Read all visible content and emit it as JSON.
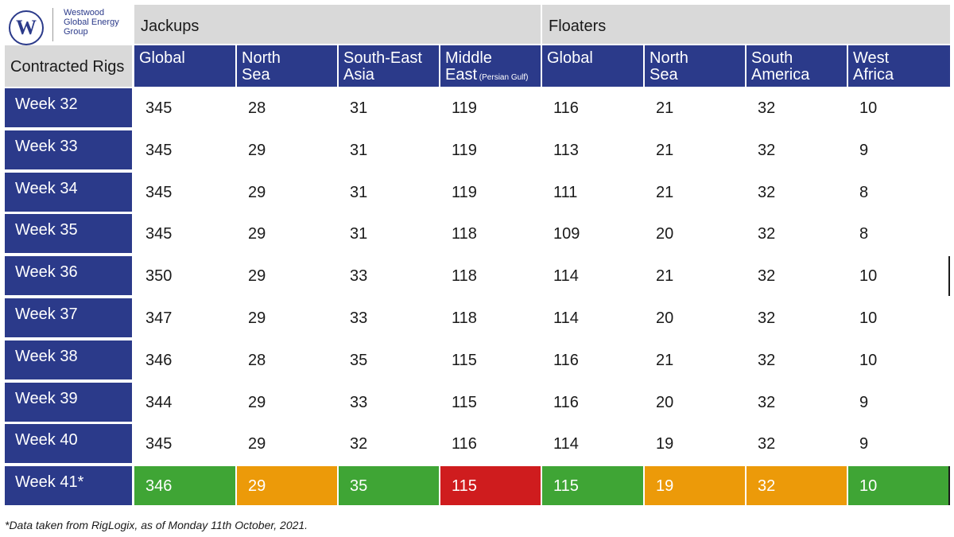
{
  "logo": {
    "mark": "W",
    "line1": "Westwood",
    "line2": "Global Energy",
    "line3": "Group"
  },
  "chart_data": {
    "type": "table",
    "row_header": "Contracted Rigs",
    "groups": [
      {
        "label": "Jackups",
        "columns": [
          "global",
          "north_sea",
          "se_asia",
          "middle_east"
        ]
      },
      {
        "label": "Floaters",
        "columns": [
          "global",
          "north_sea",
          "south_america",
          "west_africa"
        ]
      }
    ],
    "columns": [
      {
        "key": "jk_global",
        "line1": "Global",
        "line2": "",
        "note": ""
      },
      {
        "key": "jk_north_sea",
        "line1": "North",
        "line2": "Sea",
        "note": ""
      },
      {
        "key": "jk_se_asia",
        "line1": "South-East",
        "line2": "Asia",
        "note": ""
      },
      {
        "key": "jk_middle_east",
        "line1": "Middle",
        "line2": "East",
        "note": "(Persian Gulf)"
      },
      {
        "key": "fl_global",
        "line1": "Global",
        "line2": "",
        "note": ""
      },
      {
        "key": "fl_north_sea",
        "line1": "North",
        "line2": "Sea",
        "note": ""
      },
      {
        "key": "fl_south_america",
        "line1": "South",
        "line2": "America",
        "note": ""
      },
      {
        "key": "fl_west_africa",
        "line1": "West",
        "line2": "Africa",
        "note": ""
      }
    ],
    "rows": [
      {
        "label": "Week 32",
        "values": [
          345,
          28,
          31,
          119,
          116,
          21,
          32,
          10
        ]
      },
      {
        "label": "Week 33",
        "values": [
          345,
          29,
          31,
          119,
          113,
          21,
          32,
          9
        ]
      },
      {
        "label": "Week 34",
        "values": [
          345,
          29,
          31,
          119,
          111,
          21,
          32,
          8
        ]
      },
      {
        "label": "Week 35",
        "values": [
          345,
          29,
          31,
          118,
          109,
          20,
          32,
          8
        ]
      },
      {
        "label": "Week 36",
        "values": [
          350,
          29,
          33,
          118,
          114,
          21,
          32,
          10
        ]
      },
      {
        "label": "Week 37",
        "values": [
          347,
          29,
          33,
          118,
          114,
          20,
          32,
          10
        ]
      },
      {
        "label": "Week 38",
        "values": [
          346,
          28,
          35,
          115,
          116,
          21,
          32,
          10
        ]
      },
      {
        "label": "Week 39",
        "values": [
          344,
          29,
          33,
          115,
          116,
          20,
          32,
          9
        ]
      },
      {
        "label": "Week 40",
        "values": [
          345,
          29,
          32,
          116,
          114,
          19,
          32,
          9
        ]
      },
      {
        "label": "Week 41*",
        "values": [
          346,
          29,
          35,
          115,
          115,
          19,
          32,
          10
        ]
      }
    ],
    "highlight_row": 9,
    "highlight_colors": [
      "green",
      "orange",
      "green",
      "red",
      "green",
      "orange",
      "orange",
      "green"
    ],
    "colors": {
      "header_blue": "#2b3a8a",
      "header_gray": "#d9d9d9",
      "green": "#3fa535",
      "orange": "#ec9a09",
      "red": "#cf1c1e"
    }
  },
  "footnote": "*Data taken from RigLogix, as of Monday 11th October, 2021."
}
